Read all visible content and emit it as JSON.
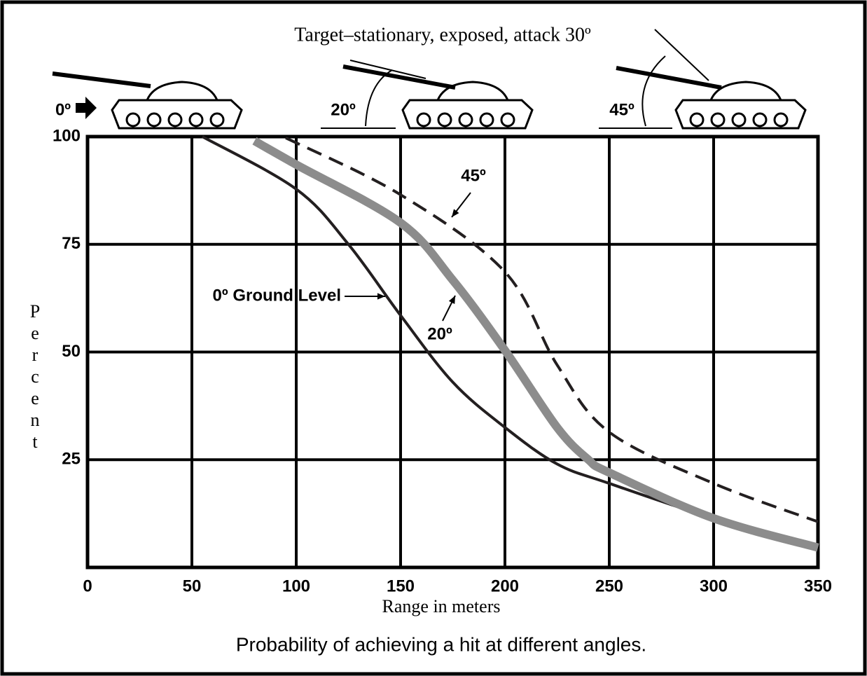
{
  "chart_data": {
    "type": "line",
    "title": "Target–stationary, exposed, attack 30º",
    "caption": "Probability of achieving a hit at different angles.",
    "x_label": "Range in meters",
    "y_label": "Percent",
    "annotations": [
      "0º",
      "20º",
      "45º"
    ],
    "xlim": [
      0,
      350
    ],
    "xticks": [
      0,
      50,
      100,
      150,
      200,
      250,
      300,
      350
    ],
    "ylim": [
      0,
      100
    ],
    "yticks": [
      25,
      50,
      75,
      100
    ],
    "grid": true,
    "series": [
      {
        "name": "0º Ground Level",
        "color": "#231f20",
        "style": "solid",
        "x": [
          55,
          100,
          125,
          150,
          175,
          200,
          225,
          250,
          300,
          350
        ],
        "values": [
          100,
          87.8,
          75,
          58.5,
          43,
          32.5,
          24,
          19.5,
          11.4,
          4.9
        ]
      },
      {
        "name": "20º",
        "color": "#8c8c8c",
        "style": "thick",
        "x": [
          80,
          100,
          150,
          175,
          200,
          225,
          240,
          250,
          300,
          350
        ],
        "values": [
          99,
          93.5,
          80,
          66.7,
          50.4,
          32.5,
          25,
          22,
          11.4,
          4.6
        ]
      },
      {
        "name": "45º",
        "color": "#231f20",
        "style": "dashed",
        "x": [
          95,
          150,
          200,
          225,
          250,
          300,
          350
        ],
        "values": [
          99.7,
          86.5,
          68.6,
          47,
          31.4,
          19.5,
          10.6
        ]
      }
    ]
  }
}
